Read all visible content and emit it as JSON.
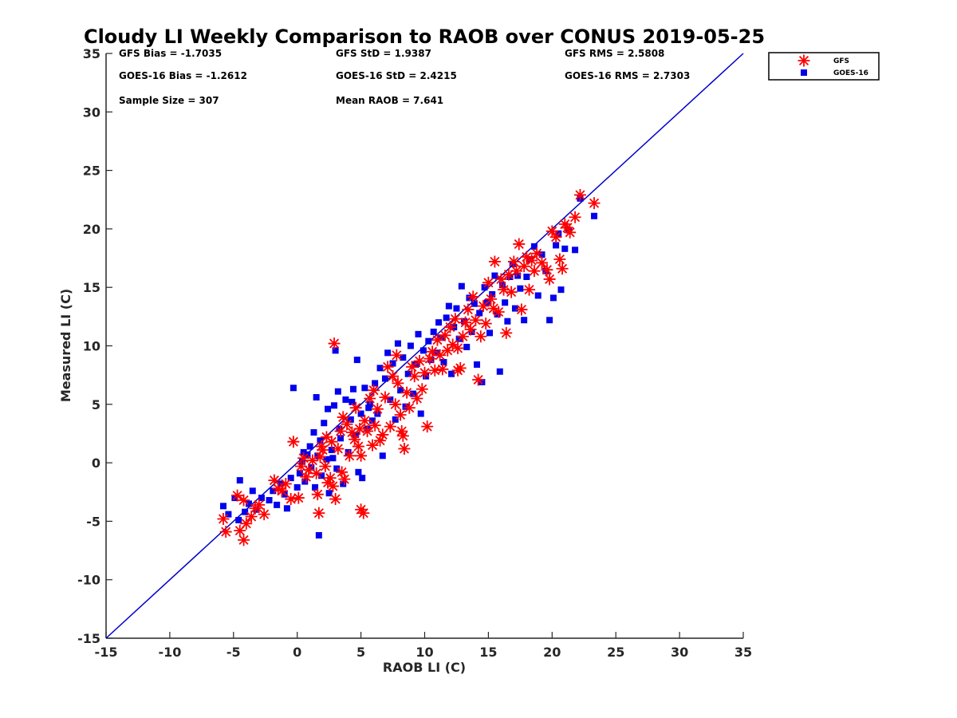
{
  "chart_data": {
    "type": "scatter",
    "title": "Cloudy LI Weekly Comparison to RAOB over CONUS 2019-05-25",
    "xlabel": "RAOB LI (C)",
    "ylabel": "Measured LI (C)",
    "xlim": [
      -15,
      35
    ],
    "ylim": [
      -15,
      35
    ],
    "xticks": [
      -15,
      -10,
      -5,
      0,
      5,
      10,
      15,
      20,
      25,
      30,
      35
    ],
    "yticks": [
      -15,
      -10,
      -5,
      0,
      5,
      10,
      15,
      20,
      25,
      30,
      35
    ],
    "grid": false,
    "legend_position": "top-right",
    "reference_line": {
      "from": [
        -15,
        -15
      ],
      "to": [
        35,
        35
      ],
      "color": "#0000cc"
    },
    "stats": [
      [
        "GFS Bias = -1.7035",
        "GFS StD = 1.9387",
        "GFS RMS = 2.5808"
      ],
      [
        "GOES-16 Bias = -1.2612",
        "GOES-16 StD = 2.4215",
        "GOES-16 RMS = 2.7303"
      ],
      [
        "Sample Size = 307",
        "Mean RAOB = 7.641",
        ""
      ]
    ],
    "series": [
      {
        "name": "GFS",
        "marker": "asterisk",
        "color": "#ff0000",
        "points": [
          [
            -5.8,
            -4.8
          ],
          [
            -5.6,
            -5.9
          ],
          [
            -4.7,
            -2.8
          ],
          [
            -4.5,
            -5.8
          ],
          [
            -4.2,
            -3.2
          ],
          [
            -4.0,
            -5.2
          ],
          [
            -4.2,
            -6.6
          ],
          [
            -3.6,
            -4.6
          ],
          [
            -3.3,
            -3.9
          ],
          [
            -3.0,
            -3.6
          ],
          [
            -2.6,
            -4.4
          ],
          [
            -1.8,
            -1.5
          ],
          [
            -1.5,
            -2.2
          ],
          [
            -1.2,
            -2.4
          ],
          [
            -0.9,
            -1.8
          ],
          [
            -0.5,
            -3.1
          ],
          [
            -0.3,
            1.8
          ],
          [
            0.1,
            -3.0
          ],
          [
            0.3,
            -0.3
          ],
          [
            0.5,
            0.4
          ],
          [
            0.9,
            -0.6
          ],
          [
            1.2,
            0.2
          ],
          [
            1.5,
            -0.9
          ],
          [
            1.6,
            -2.7
          ],
          [
            1.7,
            -4.3
          ],
          [
            1.8,
            0.5
          ],
          [
            2.0,
            1.1
          ],
          [
            2.2,
            -0.3
          ],
          [
            2.4,
            -1.7
          ],
          [
            2.6,
            -1.3
          ],
          [
            2.7,
            1.8
          ],
          [
            2.8,
            -2.0
          ],
          [
            3.0,
            -3.1
          ],
          [
            2.9,
            10.2
          ],
          [
            3.2,
            1.2
          ],
          [
            3.4,
            2.7
          ],
          [
            3.5,
            -0.8
          ],
          [
            3.7,
            -1.4
          ],
          [
            3.9,
            3.3
          ],
          [
            4.1,
            0.6
          ],
          [
            4.3,
            2.6
          ],
          [
            4.5,
            2.0
          ],
          [
            4.6,
            4.7
          ],
          [
            4.8,
            1.4
          ],
          [
            5.0,
            0.6
          ],
          [
            5.0,
            -4.0
          ],
          [
            5.2,
            -4.3
          ],
          [
            5.3,
            3.6
          ],
          [
            5.5,
            2.7
          ],
          [
            5.7,
            5.5
          ],
          [
            5.9,
            1.5
          ],
          [
            6.1,
            3.2
          ],
          [
            6.3,
            4.6
          ],
          [
            6.5,
            1.9
          ],
          [
            6.7,
            2.4
          ],
          [
            6.9,
            5.6
          ],
          [
            7.1,
            8.2
          ],
          [
            7.3,
            3.1
          ],
          [
            7.5,
            7.4
          ],
          [
            7.7,
            5.0
          ],
          [
            7.9,
            6.8
          ],
          [
            8.1,
            4.1
          ],
          [
            8.3,
            2.3
          ],
          [
            8.4,
            1.2
          ],
          [
            8.6,
            6.0
          ],
          [
            8.8,
            4.7
          ],
          [
            9.0,
            8.2
          ],
          [
            9.2,
            7.4
          ],
          [
            9.4,
            5.5
          ],
          [
            9.6,
            8.7
          ],
          [
            9.8,
            6.3
          ],
          [
            10.0,
            7.7
          ],
          [
            10.2,
            3.1
          ],
          [
            10.4,
            8.9
          ],
          [
            10.6,
            9.5
          ],
          [
            10.8,
            7.9
          ],
          [
            11.0,
            10.5
          ],
          [
            11.2,
            9.2
          ],
          [
            11.4,
            8.0
          ],
          [
            11.6,
            10.9
          ],
          [
            11.8,
            9.6
          ],
          [
            12.0,
            11.6
          ],
          [
            12.2,
            10.1
          ],
          [
            12.4,
            12.3
          ],
          [
            12.6,
            9.8
          ],
          [
            12.8,
            8.1
          ],
          [
            13.0,
            10.8
          ],
          [
            13.2,
            12.0
          ],
          [
            13.4,
            13.1
          ],
          [
            13.6,
            11.4
          ],
          [
            13.8,
            14.2
          ],
          [
            14.0,
            12.2
          ],
          [
            14.2,
            7.1
          ],
          [
            14.4,
            10.8
          ],
          [
            14.6,
            13.4
          ],
          [
            14.8,
            11.9
          ],
          [
            15.0,
            15.4
          ],
          [
            15.2,
            14.0
          ],
          [
            15.4,
            13.2
          ],
          [
            15.5,
            17.2
          ],
          [
            15.8,
            12.9
          ],
          [
            16.0,
            15.7
          ],
          [
            16.2,
            14.8
          ],
          [
            16.4,
            11.1
          ],
          [
            16.6,
            16.1
          ],
          [
            16.8,
            14.6
          ],
          [
            17.0,
            17.2
          ],
          [
            17.2,
            16.4
          ],
          [
            17.4,
            18.7
          ],
          [
            17.6,
            13.1
          ],
          [
            17.8,
            16.8
          ],
          [
            18.0,
            17.6
          ],
          [
            18.2,
            14.8
          ],
          [
            18.4,
            17.3
          ],
          [
            18.6,
            16.4
          ],
          [
            18.8,
            17.9
          ],
          [
            19.2,
            17.1
          ],
          [
            19.6,
            16.5
          ],
          [
            19.8,
            15.7
          ],
          [
            20.0,
            19.8
          ],
          [
            20.3,
            19.3
          ],
          [
            20.6,
            17.4
          ],
          [
            20.8,
            16.6
          ],
          [
            21.0,
            20.4
          ],
          [
            21.2,
            20.1
          ],
          [
            21.4,
            19.7
          ],
          [
            21.8,
            21.0
          ],
          [
            22.2,
            22.9
          ],
          [
            23.3,
            22.2
          ],
          [
            8.2,
            2.7
          ],
          [
            6.0,
            6.2
          ],
          [
            7.8,
            9.2
          ],
          [
            12.6,
            7.9
          ],
          [
            3.6,
            3.9
          ],
          [
            4.9,
            2.9
          ],
          [
            1.9,
            1.4
          ],
          [
            2.3,
            2.2
          ],
          [
            0.7,
            -1.2
          ]
        ]
      },
      {
        "name": "GOES-16",
        "marker": "square",
        "color": "#0000ee",
        "points": [
          [
            -5.8,
            -3.7
          ],
          [
            -5.4,
            -4.4
          ],
          [
            -4.9,
            -3.0
          ],
          [
            -4.6,
            -4.9
          ],
          [
            -4.5,
            -1.5
          ],
          [
            -4.1,
            -4.2
          ],
          [
            -3.8,
            -3.5
          ],
          [
            -3.5,
            -2.4
          ],
          [
            -3.2,
            -4.0
          ],
          [
            -2.8,
            -3.0
          ],
          [
            -2.2,
            -3.2
          ],
          [
            -1.9,
            -2.4
          ],
          [
            -1.6,
            -3.6
          ],
          [
            -1.3,
            -1.8
          ],
          [
            -1.0,
            -2.7
          ],
          [
            -0.8,
            -3.9
          ],
          [
            -0.5,
            -1.3
          ],
          [
            -0.3,
            6.4
          ],
          [
            0.0,
            -2.1
          ],
          [
            0.2,
            -0.9
          ],
          [
            0.4,
            0.1
          ],
          [
            0.6,
            -1.6
          ],
          [
            0.8,
            0.7
          ],
          [
            1.0,
            1.4
          ],
          [
            1.1,
            -0.4
          ],
          [
            1.3,
            2.6
          ],
          [
            1.5,
            5.6
          ],
          [
            1.6,
            0.6
          ],
          [
            1.7,
            -6.2
          ],
          [
            1.8,
            1.9
          ],
          [
            1.9,
            -1.1
          ],
          [
            2.1,
            3.4
          ],
          [
            2.3,
            0.3
          ],
          [
            2.4,
            4.6
          ],
          [
            2.5,
            -2.6
          ],
          [
            2.7,
            1.1
          ],
          [
            2.9,
            4.9
          ],
          [
            3.0,
            9.6
          ],
          [
            3.1,
            -0.5
          ],
          [
            3.2,
            6.1
          ],
          [
            3.4,
            2.1
          ],
          [
            3.6,
            -1.8
          ],
          [
            3.8,
            5.4
          ],
          [
            4.0,
            0.9
          ],
          [
            4.2,
            3.7
          ],
          [
            4.4,
            6.3
          ],
          [
            4.6,
            2.4
          ],
          [
            4.7,
            8.8
          ],
          [
            4.8,
            -0.8
          ],
          [
            5.0,
            4.2
          ],
          [
            5.1,
            -1.3
          ],
          [
            5.3,
            6.4
          ],
          [
            5.5,
            2.9
          ],
          [
            5.7,
            5.0
          ],
          [
            5.9,
            3.6
          ],
          [
            6.1,
            6.8
          ],
          [
            6.3,
            4.2
          ],
          [
            6.5,
            8.1
          ],
          [
            6.7,
            0.6
          ],
          [
            6.9,
            7.2
          ],
          [
            7.1,
            9.4
          ],
          [
            7.3,
            5.4
          ],
          [
            7.5,
            8.5
          ],
          [
            7.7,
            3.7
          ],
          [
            7.9,
            10.2
          ],
          [
            8.1,
            6.2
          ],
          [
            8.3,
            9.0
          ],
          [
            8.5,
            4.8
          ],
          [
            8.7,
            7.6
          ],
          [
            8.9,
            10.0
          ],
          [
            9.1,
            5.9
          ],
          [
            9.3,
            8.4
          ],
          [
            9.5,
            11.0
          ],
          [
            9.7,
            4.2
          ],
          [
            9.9,
            9.6
          ],
          [
            10.1,
            7.4
          ],
          [
            10.3,
            10.4
          ],
          [
            10.5,
            8.8
          ],
          [
            10.7,
            11.2
          ],
          [
            10.9,
            9.4
          ],
          [
            11.1,
            12.0
          ],
          [
            11.3,
            10.7
          ],
          [
            11.5,
            8.6
          ],
          [
            11.7,
            12.4
          ],
          [
            11.9,
            13.4
          ],
          [
            12.1,
            7.6
          ],
          [
            12.3,
            11.6
          ],
          [
            12.5,
            13.2
          ],
          [
            12.7,
            10.6
          ],
          [
            12.9,
            15.1
          ],
          [
            13.1,
            12.1
          ],
          [
            13.3,
            9.9
          ],
          [
            13.5,
            14.1
          ],
          [
            13.7,
            11.2
          ],
          [
            13.9,
            13.6
          ],
          [
            14.1,
            8.4
          ],
          [
            14.3,
            12.8
          ],
          [
            14.5,
            6.9
          ],
          [
            14.7,
            15.0
          ],
          [
            14.9,
            13.7
          ],
          [
            15.1,
            11.1
          ],
          [
            15.3,
            14.4
          ],
          [
            15.5,
            16.0
          ],
          [
            15.7,
            12.7
          ],
          [
            15.9,
            7.8
          ],
          [
            16.1,
            15.2
          ],
          [
            16.3,
            13.7
          ],
          [
            16.5,
            12.1
          ],
          [
            16.7,
            15.9
          ],
          [
            16.9,
            17.0
          ],
          [
            17.1,
            13.2
          ],
          [
            17.3,
            16.0
          ],
          [
            17.5,
            14.9
          ],
          [
            17.8,
            12.2
          ],
          [
            18.0,
            15.9
          ],
          [
            18.3,
            17.4
          ],
          [
            18.6,
            18.5
          ],
          [
            18.9,
            14.3
          ],
          [
            19.2,
            17.8
          ],
          [
            19.5,
            16.4
          ],
          [
            19.8,
            12.2
          ],
          [
            20.1,
            14.1
          ],
          [
            20.3,
            18.6
          ],
          [
            20.5,
            19.6
          ],
          [
            20.7,
            14.8
          ],
          [
            21.0,
            18.3
          ],
          [
            21.3,
            19.9
          ],
          [
            21.8,
            18.2
          ],
          [
            22.2,
            22.6
          ],
          [
            23.3,
            21.1
          ],
          [
            0.5,
            0.9
          ],
          [
            1.4,
            -2.1
          ],
          [
            2.8,
            0.4
          ],
          [
            3.3,
            2.9
          ],
          [
            4.3,
            5.2
          ],
          [
            5.6,
            4.7
          ]
        ]
      }
    ]
  }
}
